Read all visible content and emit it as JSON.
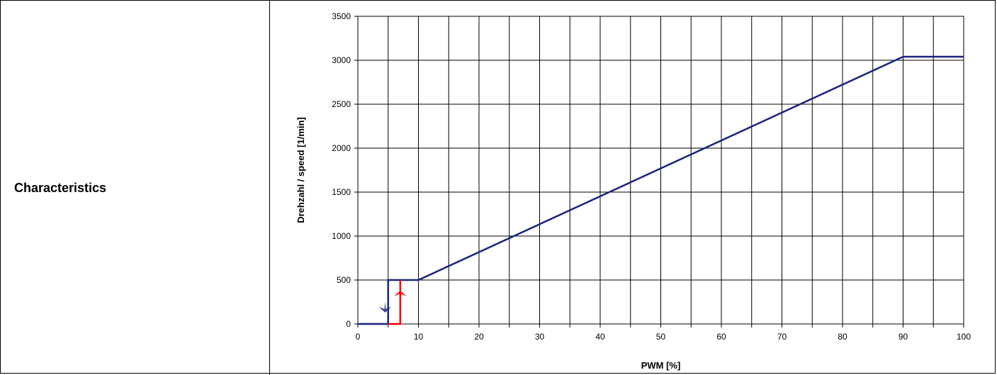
{
  "table": {
    "row_label": "Characteristics"
  },
  "chart_data": {
    "type": "line",
    "xlabel": "PWM [%]",
    "ylabel": "Drehzahl / speed [1/min]",
    "xlim": [
      0,
      100
    ],
    "ylim": [
      0,
      3500
    ],
    "x_ticks": [
      0,
      10,
      20,
      30,
      40,
      50,
      60,
      70,
      80,
      90,
      100
    ],
    "y_ticks": [
      0,
      500,
      1000,
      1500,
      2000,
      2500,
      3000,
      3500
    ],
    "x_gridlines": [
      0,
      5,
      10,
      15,
      20,
      25,
      30,
      35,
      40,
      45,
      50,
      55,
      60,
      65,
      70,
      75,
      80,
      85,
      90,
      95,
      100
    ],
    "grid": true,
    "series": [
      {
        "color": "#1a237e",
        "points": [
          [
            0,
            0
          ],
          [
            5,
            0
          ],
          [
            5,
            500
          ],
          [
            10,
            500
          ],
          [
            90,
            3040
          ],
          [
            100,
            3040
          ]
        ]
      },
      {
        "color": "#ff0000",
        "points": [
          [
            5,
            0
          ],
          [
            7,
            0
          ],
          [
            7,
            500
          ]
        ]
      }
    ],
    "markers": [
      {
        "icon": "down-arrow-icon",
        "color": "#1a237e",
        "x": 4.5,
        "y": 170
      },
      {
        "icon": "up-arrow-icon",
        "color": "#ff0000",
        "x": 7,
        "y": 340
      }
    ]
  }
}
